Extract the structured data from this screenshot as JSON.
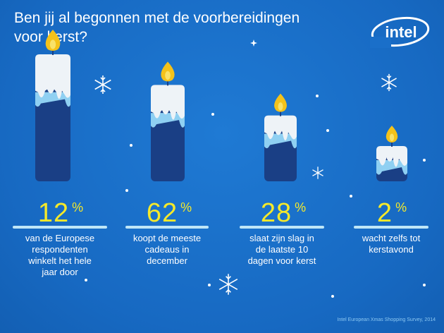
{
  "title_line1": "Ben jij al begonnen met de voorbereidingen",
  "title_line2": "voor kerst?",
  "logo_text": "intel",
  "source": "Intel European Xmas Shopping Survey, 2014",
  "colors": {
    "background": "#1a6fc9",
    "candle_dark": "#1a3f85",
    "candle_wax": "#eef3f7",
    "drip_light": "#8fd0f2",
    "flame_outer": "#f4c21a",
    "flame_inner": "#f8e26a",
    "percent": "#f5e92a"
  },
  "chart_data": {
    "type": "bar",
    "title": "Ben jij al begonnen met de voorbereidingen voor kerst?",
    "unit": "%",
    "categories": [
      "van de Europese respondenten winkelt het hele jaar door",
      "koopt de meeste cadeaus in december",
      "slaat zijn slag in de laatste 10 dagen voor kerst",
      "wacht zelfs tot kerstavond"
    ],
    "values": [
      12,
      62,
      28,
      2
    ],
    "items": [
      {
        "value": "12",
        "sign": "%",
        "desc": [
          "van de Europese",
          "respondenten",
          "winkelt het hele",
          "jaar door"
        ]
      },
      {
        "value": "62",
        "sign": "%",
        "desc": [
          "koopt de meeste",
          "cadeaus in",
          "december"
        ]
      },
      {
        "value": "28",
        "sign": "%",
        "desc": [
          "slaat zijn slag in",
          "de laatste 10",
          "dagen voor kerst"
        ]
      },
      {
        "value": "2",
        "sign": "%",
        "desc": [
          "wacht zelfs tot",
          "kerstavond"
        ]
      }
    ]
  }
}
